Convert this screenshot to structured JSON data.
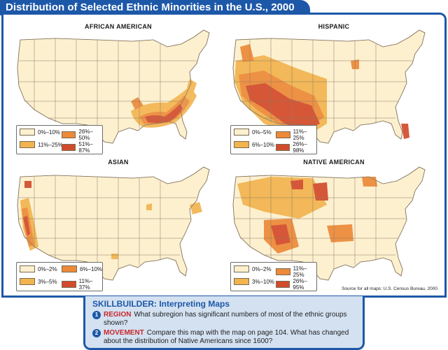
{
  "title": "Distribution of Selected Ethnic Minorities in the U.S., 2000",
  "colors": {
    "frame": "#1d58a8",
    "base": "#fdf0cf",
    "level2": "#f2b44f",
    "level3": "#ec8a3a",
    "level4": "#d24b2c",
    "state_lines": "#8a7a63"
  },
  "maps": [
    {
      "title": "AFRICAN AMERICAN",
      "legend": [
        "0%–10%",
        "11%–25%",
        "26%–50%",
        "51%–87%"
      ],
      "high_regions": [
        "Southeast",
        "Mississippi Delta",
        "Atlantic coastal plain"
      ]
    },
    {
      "title": "HISPANIC",
      "legend": [
        "0%–5%",
        "6%–10%",
        "11%–25%",
        "26%–98%"
      ],
      "high_regions": [
        "Southwest",
        "Southern Texas",
        "California",
        "South Florida"
      ]
    },
    {
      "title": "ASIAN",
      "legend": [
        "0%–2%",
        "3%–5%",
        "6%–10%",
        "11%–37%"
      ],
      "high_regions": [
        "California coast",
        "Puget Sound",
        "Northeast metro areas"
      ]
    },
    {
      "title": "NATIVE AMERICAN",
      "legend": [
        "0%–2%",
        "3%–10%",
        "11%–25%",
        "26%–95%"
      ],
      "high_regions": [
        "Four Corners",
        "Dakotas",
        "Oklahoma",
        "Montana"
      ]
    }
  ],
  "source": "Source for all maps: U.S. Census Bureau, 2000",
  "skillbuilder": {
    "title": "SKILLBUILDER: Interpreting Maps",
    "questions": [
      {
        "num": "1",
        "keyword": "REGION",
        "text": "What subregion has significant numbers of most of the ethnic groups shown?"
      },
      {
        "num": "2",
        "keyword": "MOVEMENT",
        "text": "Compare this map with the map on page 104. What has changed about the distribution of Native Americans since 1600?"
      }
    ]
  }
}
